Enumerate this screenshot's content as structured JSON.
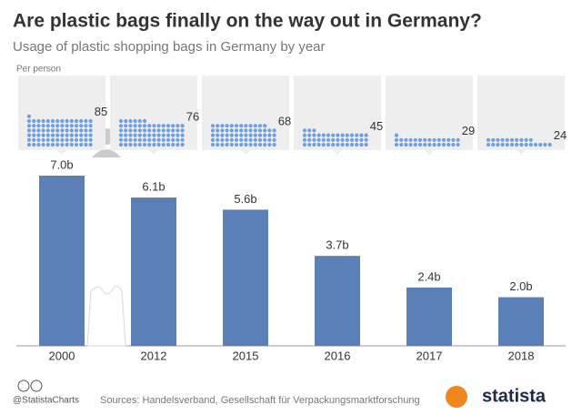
{
  "chart_data": {
    "type": "bar",
    "title": "Are plastic bags finally on the way out in Germany?",
    "subtitle": "Usage of plastic shopping bags in Germany by year",
    "categories": [
      "2000",
      "2012",
      "2015",
      "2016",
      "2017",
      "2018"
    ],
    "values": [
      7.0,
      6.1,
      5.6,
      3.7,
      2.4,
      2.0
    ],
    "value_labels": [
      "7.0b",
      "6.1b",
      "5.6b",
      "3.7b",
      "2.4b",
      "2.0b"
    ],
    "color": "#5b80b8",
    "per_person": {
      "label": "Per person",
      "values": [
        85,
        76,
        68,
        45,
        29,
        24
      ],
      "color": "#6f9fe3"
    },
    "credit": "@StatistaCharts",
    "source": "Sources: Handelsverband, Gesellschaft für Verpackungsmarktforschung",
    "brand": "statista"
  }
}
